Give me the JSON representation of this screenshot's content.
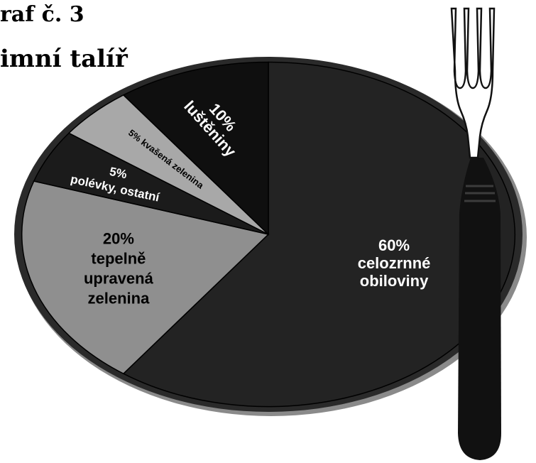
{
  "figure": {
    "caption": "raf č. 3",
    "headline": "imní talíř"
  },
  "colors": {
    "plate_rim": "#2a2a2a",
    "plate_edge": "#8a8a8a",
    "grains": "#232323",
    "vegetables_cooked": "#8f8f8f",
    "soups_other": "#1b1b1b",
    "fermented_vegetables": "#a8a8a8",
    "legumes": "#0f0f0f",
    "fork_handle": "#111111"
  },
  "icons": {
    "utensil": "fork-icon"
  },
  "chart_data": {
    "type": "pie",
    "title": "",
    "slices": [
      {
        "value": 60,
        "percent_label": "60%",
        "label_lines": [
          "celozrnné",
          "obiloviny"
        ],
        "color": "#232323"
      },
      {
        "value": 20,
        "percent_label": "20%",
        "label_lines": [
          "tepelně",
          "upravená",
          "zelenina"
        ],
        "color": "#8f8f8f"
      },
      {
        "value": 5,
        "percent_label": "5%",
        "label_lines": [
          "polévky, ostatní"
        ],
        "color": "#1b1b1b"
      },
      {
        "value": 5,
        "percent_label": "5%",
        "label_lines": [
          "kvašená zelenina"
        ],
        "color": "#a8a8a8"
      },
      {
        "value": 10,
        "percent_label": "10%",
        "label_lines": [
          "luštěniny"
        ],
        "color": "#0f0f0f"
      }
    ]
  }
}
